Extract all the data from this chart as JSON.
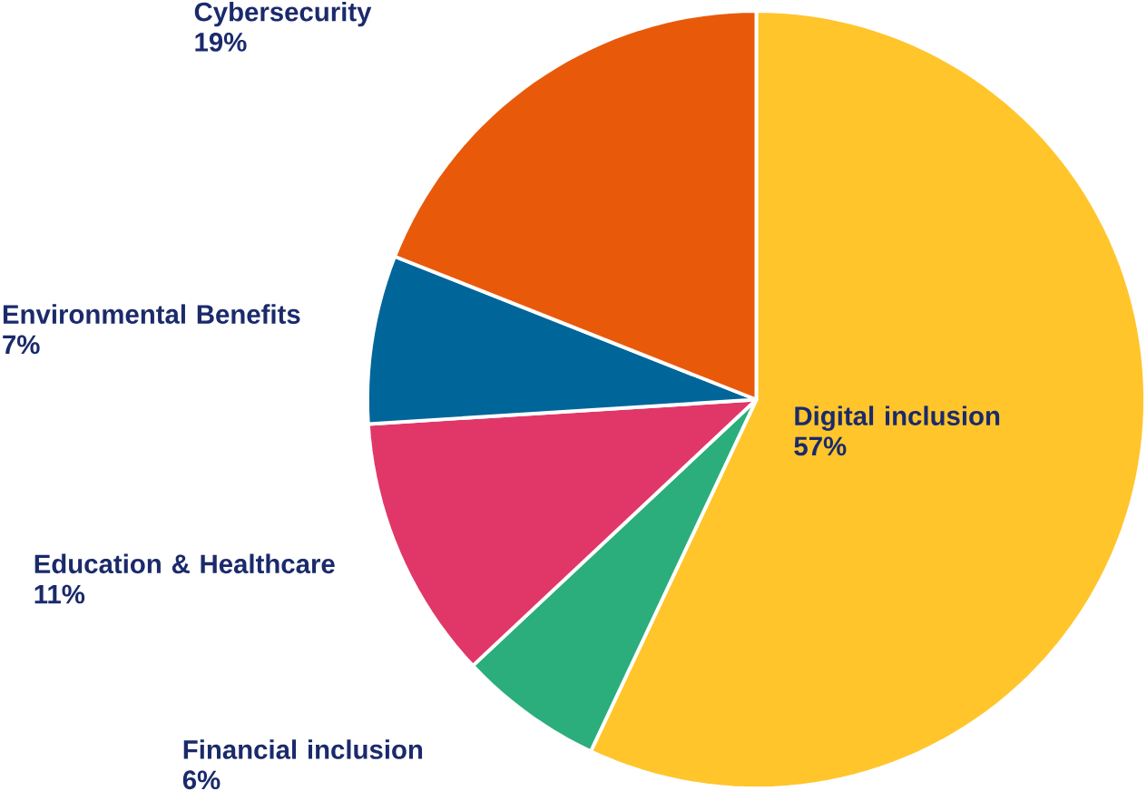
{
  "chart_data": {
    "type": "pie",
    "categories": [
      "Digital inclusion",
      "Financial inclusion",
      "Education & Healthcare",
      "Environmental Benefits",
      "Cybersecurity"
    ],
    "values": [
      57,
      6,
      11,
      7,
      19
    ],
    "value_labels": [
      "57%",
      "6%",
      "11%",
      "7%",
      "19%"
    ],
    "colors": [
      "#ffc52b",
      "#2bae7b",
      "#e03768",
      "#006699",
      "#e85a0a"
    ]
  }
}
